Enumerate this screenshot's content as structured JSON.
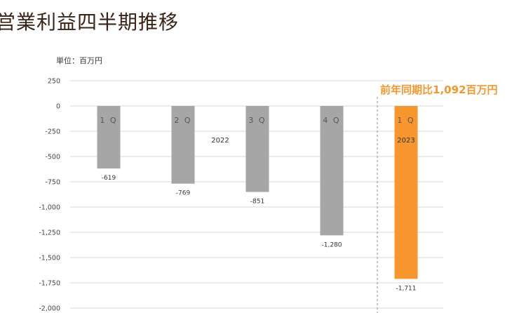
{
  "title": "営業利益四半期推移",
  "unit_label": "単位：百万円",
  "annotation": "前年同期比1,092百万円",
  "colors": {
    "bar_2022": "#a6a6a6",
    "bar_2023": "#f7962d",
    "grid": "#d9d9d9",
    "divider": "#8c8c8c"
  },
  "chart_data": {
    "type": "bar",
    "categories": [
      "1Q",
      "2Q",
      "3Q",
      "4Q",
      "1Q"
    ],
    "category_labels": [
      "1 Q",
      "2 Q",
      "3 Q",
      "4 Q",
      "1 Q"
    ],
    "years": [
      {
        "label": "2022",
        "categories": [
          0,
          1,
          2,
          3
        ]
      },
      {
        "label": "2023",
        "categories": [
          4
        ]
      }
    ],
    "values": [
      -619,
      -769,
      -851,
      -1280,
      -1711
    ],
    "data_labels": [
      "-619",
      "-769",
      "-851",
      "-1,280",
      "-1,711"
    ],
    "ylim": [
      -2000,
      250
    ],
    "yticks": [
      250,
      0,
      -250,
      -500,
      -750,
      -1000,
      -1250,
      -1500,
      -1750,
      -2000
    ],
    "ytick_labels": [
      "250",
      "0",
      "-250",
      "-500",
      "-750",
      "-1,000",
      "-1,250",
      "-1,500",
      "-1,750",
      "-2,000"
    ],
    "grid": true,
    "title": "",
    "xlabel": "",
    "ylabel": ""
  }
}
